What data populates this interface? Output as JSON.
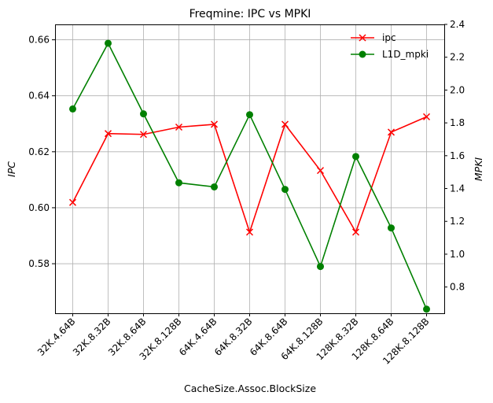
{
  "chart_data": {
    "type": "line",
    "title": "Freqmine: IPC vs MPKI",
    "xlabel": "CacheSize.Assoc.BlockSize",
    "ylabel": "IPC",
    "y2label": "MPKI",
    "categories": [
      "32K.4.64B",
      "32K.8.32B",
      "32K.8.64B",
      "32K.8.128B",
      "64K.4.64B",
      "64K.8.32B",
      "64K.8.64B",
      "64K.8.128B",
      "128K.8.32B",
      "128K.8.64B",
      "128K.8.128B"
    ],
    "ylim": [
      0.5623,
      0.6655
    ],
    "y2lim": [
      0.64,
      2.4
    ],
    "yticks": [
      "0.58",
      "0.60",
      "0.62",
      "0.64",
      "0.66"
    ],
    "y2ticks": [
      "0.8",
      "1.0",
      "1.2",
      "1.4",
      "1.6",
      "1.8",
      "2.0",
      "2.2",
      "2.4"
    ],
    "grid": true,
    "legend_position": "top-right",
    "series": [
      {
        "name": "ipc",
        "axis": "left",
        "color": "#ff0000",
        "marker": "x",
        "values": [
          0.6019,
          0.6265,
          0.6262,
          0.6288,
          0.6298,
          0.5913,
          0.6298,
          0.6133,
          0.5913,
          0.627,
          0.6325
        ]
      },
      {
        "name": "L1D_mpki",
        "axis": "right",
        "color": "#008000",
        "marker": "o",
        "values": [
          1.885,
          2.285,
          1.855,
          1.435,
          1.41,
          1.85,
          1.395,
          0.925,
          1.595,
          1.16,
          0.665
        ]
      }
    ]
  }
}
